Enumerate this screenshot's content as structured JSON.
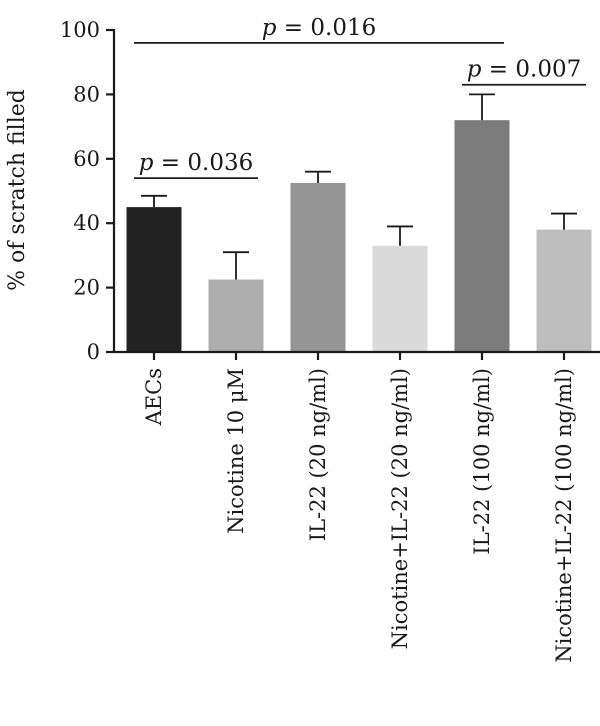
{
  "chart_data": {
    "type": "bar",
    "title": "",
    "xlabel": "",
    "ylabel": "% of scratch filled",
    "ylim": [
      0,
      100
    ],
    "yticks": [
      "0",
      "20",
      "40",
      "60",
      "80",
      "100"
    ],
    "grid": false,
    "categories": [
      "AECs",
      "Nicotine 10 μM",
      "IL-22 (20 ng/ml)",
      "Nicotine+IL-22 (20 ng/ml)",
      "IL-22 (100 ng/ml)",
      "Nicotine+IL-22 (100 ng/ml)"
    ],
    "values": [
      45,
      22.5,
      52.5,
      33,
      72,
      38
    ],
    "errors": [
      3.5,
      8.5,
      3.5,
      6,
      8,
      5
    ],
    "bar_colors": [
      "#222222",
      "#adadad",
      "#959595",
      "#dadada",
      "#7b7b7b",
      "#bdbdbd"
    ],
    "annotations": [
      {
        "p_label": "p",
        "value_text": " = 0.036",
        "from": 0,
        "to": 1,
        "y": 54
      },
      {
        "p_label": "p",
        "value_text": " = 0.016",
        "from": 0,
        "to": 4,
        "y": 96
      },
      {
        "p_label": "p",
        "value_text": " = 0.007",
        "from": 4,
        "to": 5,
        "y": 83
      }
    ]
  }
}
